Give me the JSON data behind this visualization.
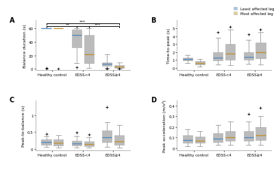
{
  "blue_color": "#a8c8e8",
  "gold_color": "#e8d090",
  "blue_median": "#5588bb",
  "gold_median": "#c09030",
  "edge_color": "#bbbbbb",
  "whisker_color": "#999999",
  "groups": [
    "Healthy control",
    "EDSS<4",
    "EDSS≥4"
  ],
  "panel_labels": [
    "A",
    "B",
    "C",
    "D"
  ],
  "ylabels": [
    "Balance duration (s)",
    "Time-to-peak (s)",
    "Peak-to-balance (s)",
    "Peak acceleration (m/s²)"
  ],
  "legend_labels": [
    "Least affected leg",
    "Most affected leg"
  ],
  "A": {
    "blue": {
      "hc": {
        "med": 60,
        "q1": 60,
        "q3": 60,
        "whislo": 60,
        "whishi": 60,
        "fliers": [
          0.5,
          1.0
        ]
      },
      "e4l": {
        "med": 50,
        "q1": 32,
        "q3": 58,
        "whislo": 8,
        "whishi": 60,
        "fliers": [
          2.0
        ]
      },
      "e4h": {
        "med": 7,
        "q1": 4,
        "q3": 10,
        "whislo": 1,
        "whishi": 22,
        "fliers": [
          0.3,
          0.5,
          0.8
        ]
      }
    },
    "gold": {
      "hc": {
        "med": 60,
        "q1": 60,
        "q3": 60,
        "whislo": 60,
        "whishi": 60,
        "fliers": [
          0.5
        ]
      },
      "e4l": {
        "med": 22,
        "q1": 8,
        "q3": 50,
        "whislo": 1,
        "whishi": 60,
        "fliers": []
      },
      "e4h": {
        "med": 3,
        "q1": 1,
        "q3": 5,
        "whislo": 0.2,
        "whishi": 10,
        "fliers": [
          0.2,
          0.3
        ]
      }
    },
    "ylim": [
      -2,
      62
    ],
    "yticks": [
      0,
      20,
      40,
      60
    ]
  },
  "B": {
    "blue": {
      "hc": {
        "med": 1.1,
        "q1": 0.9,
        "q3": 1.3,
        "whislo": 0.6,
        "whishi": 1.6,
        "fliers": []
      },
      "e4l": {
        "med": 1.3,
        "q1": 0.9,
        "q3": 2.0,
        "whislo": 0.4,
        "whishi": 3.8,
        "fliers": [
          4.5
        ]
      },
      "e4h": {
        "med": 1.4,
        "q1": 1.0,
        "q3": 2.0,
        "whislo": 0.5,
        "whishi": 3.5,
        "fliers": [
          4.2
        ]
      }
    },
    "gold": {
      "hc": {
        "med": 0.6,
        "q1": 0.4,
        "q3": 0.85,
        "whislo": 0.2,
        "whishi": 1.1,
        "fliers": []
      },
      "e4l": {
        "med": 1.8,
        "q1": 1.0,
        "q3": 3.0,
        "whislo": 0.3,
        "whishi": 4.8,
        "fliers": [
          5.2
        ]
      },
      "e4h": {
        "med": 2.0,
        "q1": 1.2,
        "q3": 3.2,
        "whislo": 0.4,
        "whishi": 4.5,
        "fliers": [
          4.8
        ]
      }
    },
    "ylim": [
      -0.3,
      6.0
    ],
    "yticks": [
      0,
      1,
      2,
      3,
      4,
      5
    ]
  },
  "C": {
    "blue": {
      "hc": {
        "med": 0.2,
        "q1": 0.12,
        "q3": 0.28,
        "whislo": 0.05,
        "whishi": 0.38,
        "fliers": [
          0.45
        ]
      },
      "e4l": {
        "med": 0.16,
        "q1": 0.1,
        "q3": 0.25,
        "whislo": 0.04,
        "whishi": 0.38,
        "fliers": [
          0.48
        ]
      },
      "e4h": {
        "med": 0.35,
        "q1": 0.2,
        "q3": 0.55,
        "whislo": 0.06,
        "whishi": 0.8,
        "fliers": [
          1.25
        ]
      }
    },
    "gold": {
      "hc": {
        "med": 0.18,
        "q1": 0.1,
        "q3": 0.28,
        "whislo": 0.04,
        "whishi": 0.4,
        "fliers": []
      },
      "e4l": {
        "med": 0.14,
        "q1": 0.08,
        "q3": 0.22,
        "whislo": 0.03,
        "whishi": 0.35,
        "fliers": [
          0.42
        ]
      },
      "e4h": {
        "med": 0.22,
        "q1": 0.12,
        "q3": 0.4,
        "whislo": 0.04,
        "whishi": 0.72,
        "fliers": []
      }
    },
    "ylim": [
      -0.05,
      1.45
    ],
    "yticks": [
      0.0,
      0.5,
      1.0
    ]
  },
  "D": {
    "blue": {
      "hc": {
        "med": 0.08,
        "q1": 0.05,
        "q3": 0.12,
        "whislo": 0.02,
        "whishi": 0.18,
        "fliers": []
      },
      "e4l": {
        "med": 0.09,
        "q1": 0.06,
        "q3": 0.14,
        "whislo": 0.03,
        "whishi": 0.22,
        "fliers": []
      },
      "e4h": {
        "med": 0.1,
        "q1": 0.07,
        "q3": 0.16,
        "whislo": 0.03,
        "whishi": 0.25,
        "fliers": [
          0.32
        ]
      }
    },
    "gold": {
      "hc": {
        "med": 0.07,
        "q1": 0.05,
        "q3": 0.11,
        "whislo": 0.02,
        "whishi": 0.16,
        "fliers": []
      },
      "e4l": {
        "med": 0.1,
        "q1": 0.07,
        "q3": 0.16,
        "whislo": 0.03,
        "whishi": 0.25,
        "fliers": []
      },
      "e4h": {
        "med": 0.12,
        "q1": 0.08,
        "q3": 0.2,
        "whislo": 0.03,
        "whishi": 0.3,
        "fliers": [
          0.38
        ]
      }
    },
    "ylim": [
      -0.02,
      0.45
    ],
    "yticks": [
      0.0,
      0.1,
      0.2,
      0.3,
      0.4
    ]
  }
}
